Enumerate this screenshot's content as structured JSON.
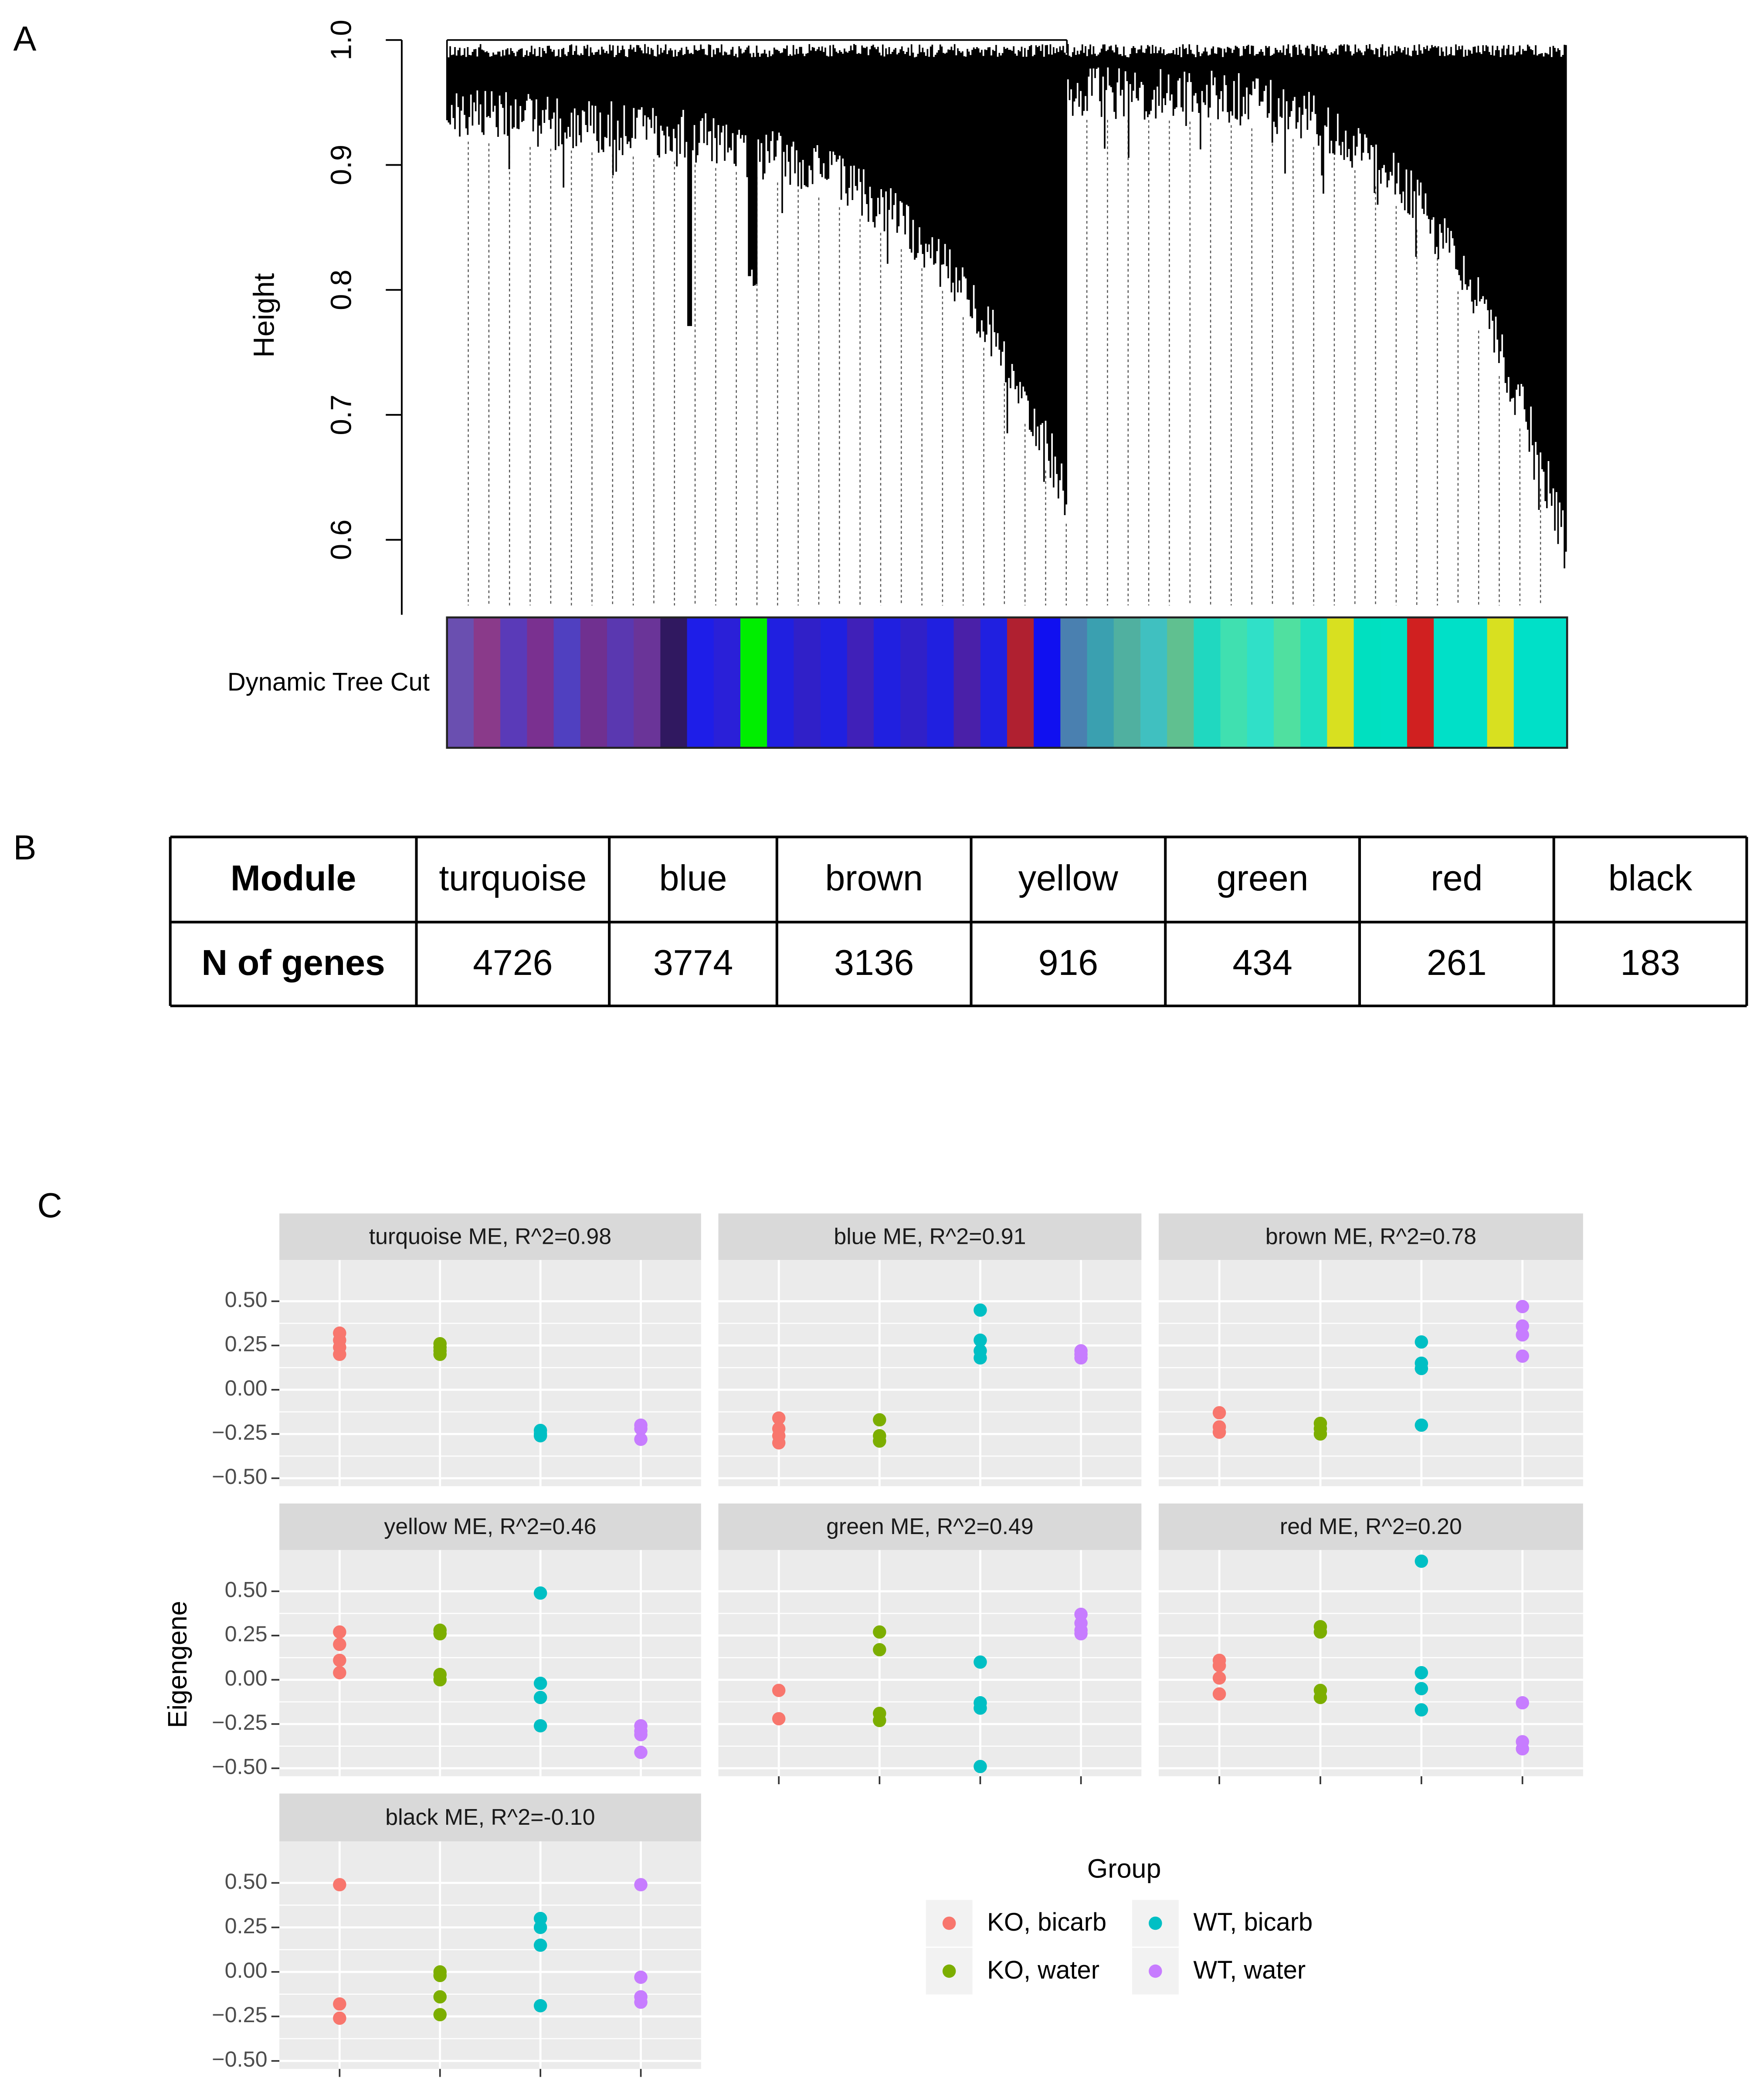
{
  "panel_labels": [
    "A",
    "B",
    "C"
  ],
  "chart_data": [
    {
      "type": "dendrogram",
      "ylabel": "Height",
      "color_bar_label": "Dynamic Tree Cut",
      "ylim": [
        0.54,
        1.0
      ],
      "yticks": [
        0.6,
        0.7,
        0.8,
        0.9,
        {
          "value": 1.0,
          "label": "1.0"
        }
      ],
      "color_bar": [
        "#6a4fb0",
        "#8a3a8a",
        "#5a3ab8",
        "#7a3090",
        "#5040c0",
        "#703090",
        "#5a38b0",
        "#6a3498",
        "#301860",
        "#1e1ee8",
        "#2a20d8",
        "#00ee00",
        "#2020e0",
        "#3020c8",
        "#2020e0",
        "#4020b8",
        "#2020e0",
        "#3020c8",
        "#2020e0",
        "#4a20a8",
        "#2020e0",
        "#b02030",
        "#1010f0",
        "#4a80b0",
        "#3aa0b0",
        "#50b0a0",
        "#40c0c0",
        "#60c090",
        "#20d8c0",
        "#40e0b0",
        "#30e0c8",
        "#50e0a0",
        "#20e0c0",
        "#d8e020",
        "#00e0c0",
        "#00e0c4",
        "#d02020",
        "#00e0c8",
        "#00e0c8",
        "#d8e020",
        "#00e0c8",
        "#00e0c8"
      ]
    },
    {
      "type": "scatter",
      "ylabel": "Eigengene",
      "legend_title": "Group",
      "ylim": [
        -0.545,
        0.733
      ],
      "yticks": [
        {
          "value": -0.5,
          "label": "−0.50"
        },
        {
          "value": -0.25,
          "label": "−0.25"
        },
        {
          "value": 0,
          "label": "0.00"
        },
        {
          "value": 0.25,
          "label": "0.25"
        },
        {
          "value": 0.5,
          "label": "0.50"
        }
      ],
      "series": [
        {
          "name": "KO, bicarb",
          "color": "#F8766D"
        },
        {
          "name": "KO, water",
          "color": "#7CAE00"
        },
        {
          "name": "WT, bicarb",
          "color": "#00BFC4"
        },
        {
          "name": "WT, water",
          "color": "#C77CFF"
        }
      ],
      "facets": [
        {
          "title": "turquoise ME, R^2=0.98",
          "values": [
            [
              0.32,
              0.28,
              0.24,
              0.2
            ],
            [
              0.26,
              0.24,
              0.22,
              0.2
            ],
            [
              -0.23,
              -0.25,
              -0.26
            ],
            [
              -0.2,
              -0.22,
              -0.28
            ]
          ]
        },
        {
          "title": "blue ME, R^2=0.91",
          "values": [
            [
              -0.16,
              -0.22,
              -0.26,
              -0.3
            ],
            [
              -0.17,
              -0.26,
              -0.29
            ],
            [
              0.45,
              0.28,
              0.22,
              0.18
            ],
            [
              0.22,
              0.2,
              0.18
            ]
          ]
        },
        {
          "title": "brown ME, R^2=0.78",
          "values": [
            [
              -0.13,
              -0.21,
              -0.24
            ],
            [
              -0.19,
              -0.22,
              -0.25
            ],
            [
              0.27,
              0.15,
              0.12,
              -0.2
            ],
            [
              0.47,
              0.36,
              0.31,
              0.19
            ]
          ]
        },
        {
          "title": "yellow ME, R^2=0.46",
          "values": [
            [
              0.27,
              0.2,
              0.11,
              0.04
            ],
            [
              0.28,
              0.26,
              0.03,
              0.0
            ],
            [
              0.49,
              -0.02,
              -0.1,
              -0.26
            ],
            [
              -0.26,
              -0.29,
              -0.31,
              -0.41
            ]
          ]
        },
        {
          "title": "green ME, R^2=0.49",
          "values": [
            [
              -0.06,
              -0.22
            ],
            [
              0.27,
              0.17,
              -0.19,
              -0.23
            ],
            [
              0.1,
              -0.13,
              -0.16,
              -0.49
            ],
            [
              0.37,
              0.32,
              0.28,
              0.26
            ]
          ]
        },
        {
          "title": "red ME, R^2=0.20",
          "values": [
            [
              0.11,
              0.08,
              0.01,
              -0.08
            ],
            [
              0.3,
              0.27,
              -0.06,
              -0.1
            ],
            [
              0.67,
              0.04,
              -0.05,
              -0.17
            ],
            [
              -0.13,
              -0.35,
              -0.39
            ]
          ]
        },
        {
          "title": "black ME, R^2=-0.10",
          "values": [
            [
              0.49,
              -0.18,
              -0.26
            ],
            [
              0.0,
              -0.02,
              -0.14,
              -0.24
            ],
            [
              0.3,
              0.25,
              0.15,
              -0.19
            ],
            [
              0.49,
              -0.03,
              -0.14,
              -0.17
            ]
          ]
        }
      ]
    }
  ],
  "table": {
    "header": [
      "Module",
      "turquoise",
      "blue",
      "brown",
      "yellow",
      "green",
      "red",
      "black"
    ],
    "rows": [
      [
        "N of genes",
        "4726",
        "3774",
        "3136",
        "916",
        "434",
        "261",
        "183"
      ]
    ]
  }
}
